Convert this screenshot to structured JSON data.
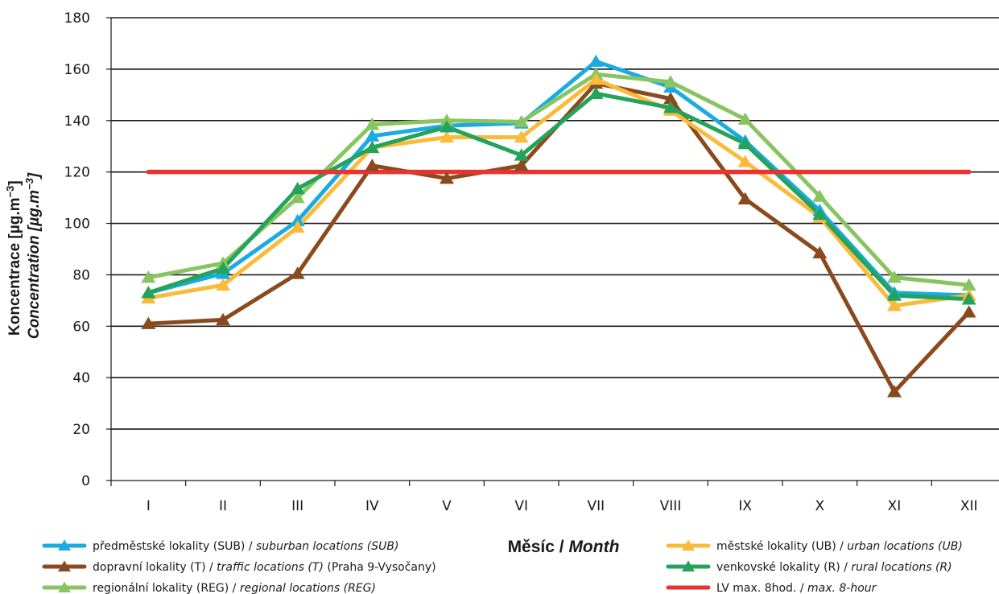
{
  "chart_data": {
    "type": "line",
    "categories": [
      "I",
      "II",
      "III",
      "IV",
      "V",
      "VI",
      "VII",
      "VIII",
      "IX",
      "X",
      "XI",
      "XII"
    ],
    "ylim": [
      0,
      180
    ],
    "yticks": [
      0,
      20,
      40,
      60,
      80,
      100,
      120,
      140,
      160,
      180
    ],
    "grid": true,
    "ylabel": {
      "line1": "Koncentrace [µg.m",
      "line1_sup": "−3",
      "line1_end": "]",
      "line2": "Concentration [µg.m",
      "line2_sup": "−3",
      "line2_end": "]"
    },
    "xlabel": {
      "cz": "Měsíc / ",
      "en": "Month"
    },
    "legend_position": "bottom",
    "series": [
      {
        "name": "předměstské lokality (SUB) / ",
        "name_en": "suburban locations (SUB)",
        "name_suffix": "",
        "color": "#1aabe2",
        "marker": "triangle",
        "values": [
          73,
          80.5,
          101,
          134,
          138,
          139,
          163,
          153,
          132,
          105,
          73,
          72
        ]
      },
      {
        "name": "dopravní lokality (T) / ",
        "name_en": "traffic locations (T)",
        "name_suffix": " (Praha 9-Vysočany)",
        "color": "#8b4a1e",
        "marker": "triangle",
        "values": [
          61,
          62.5,
          80.5,
          122.5,
          117.5,
          122.5,
          154.5,
          148.5,
          109.5,
          88.5,
          34.5,
          65.5
        ]
      },
      {
        "name": "regionální lokality (REG) / ",
        "name_en": "regional locations (REG)",
        "name_suffix": "",
        "color": "#88c561",
        "marker": "triangle",
        "values": [
          79,
          84.5,
          110,
          138.5,
          140,
          139.5,
          158,
          155,
          140.5,
          110.5,
          79,
          76
        ]
      },
      {
        "name": "městské lokality (UB) / ",
        "name_en": "urban locations (UB)",
        "name_suffix": "",
        "color": "#fbbb3a",
        "marker": "triangle",
        "values": [
          71,
          76,
          98.5,
          129.5,
          133.5,
          133.5,
          156,
          144,
          124,
          102.5,
          68,
          72
        ]
      },
      {
        "name": "venkovské lokality (R) / ",
        "name_en": "rural locations (R)",
        "name_suffix": "",
        "color": "#24a35a",
        "marker": "triangle",
        "values": [
          73,
          82.5,
          113.5,
          129.5,
          137.5,
          126.5,
          150.5,
          145,
          131,
          103.5,
          72,
          70.5
        ]
      },
      {
        "name": "LV max. 8hod. / ",
        "name_en": "max. 8-hour",
        "name_suffix": "",
        "color": "#e8332f",
        "marker": "none",
        "values": [
          120,
          120,
          120,
          120,
          120,
          120,
          120,
          120,
          120,
          120,
          120,
          120
        ]
      }
    ]
  }
}
